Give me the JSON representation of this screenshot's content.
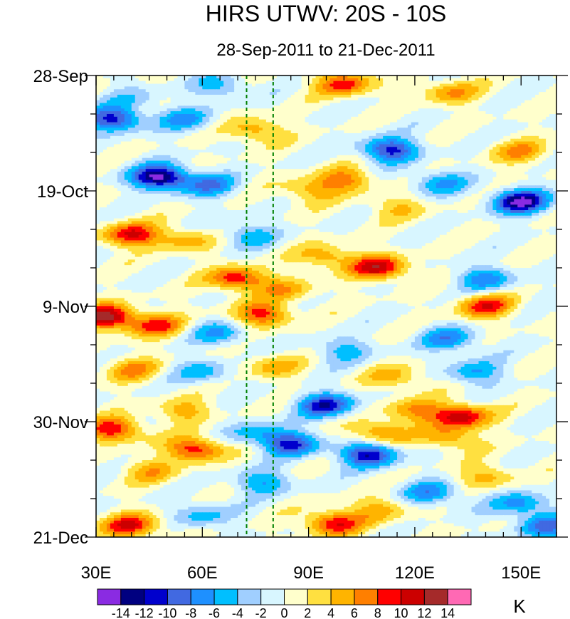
{
  "chart_data": {
    "type": "heatmap",
    "title": "HIRS UTWV: 20S - 10S",
    "subtitle": "28-Sep-2011 to 21-Dec-2011",
    "xlabel": "",
    "ylabel": "",
    "xlim": [
      30,
      160
    ],
    "ylim_dates": [
      "28-Sep-2011",
      "21-Dec-2011"
    ],
    "ylim_days": [
      0,
      84
    ],
    "x_ticks": [
      {
        "value": 30,
        "label": "30E"
      },
      {
        "value": 60,
        "label": "60E"
      },
      {
        "value": 90,
        "label": "90E"
      },
      {
        "value": 120,
        "label": "120E"
      },
      {
        "value": 150,
        "label": "150E"
      }
    ],
    "y_ticks": [
      {
        "day": 0,
        "label": "28-Sep"
      },
      {
        "day": 21,
        "label": "19-Oct"
      },
      {
        "day": 42,
        "label": "9-Nov"
      },
      {
        "day": 63,
        "label": "30-Nov"
      },
      {
        "day": 84,
        "label": "21-Dec"
      }
    ],
    "reference_lines": [
      {
        "lon": 72.5,
        "style": "dashed",
        "color": "#008000"
      },
      {
        "lon": 80,
        "style": "dashed",
        "color": "#008000"
      }
    ],
    "colorbar": {
      "unit": "K",
      "levels": [
        -14,
        -12,
        -10,
        -8,
        -6,
        -4,
        -2,
        0,
        2,
        4,
        6,
        8,
        10,
        12,
        14
      ],
      "labels": [
        "-14",
        "-12",
        "-10",
        "-8",
        "-6",
        "-4",
        "-2",
        "0",
        "2",
        "4",
        "6",
        "8",
        "10",
        "12",
        "14"
      ],
      "colors": [
        "#8a2be2",
        "#000080",
        "#0000cd",
        "#4169e1",
        "#1e90ff",
        "#00bfff",
        "#a0cfff",
        "#d8f6ff",
        "#ffffcc",
        "#ffe040",
        "#ffb400",
        "#ff7f00",
        "#ff0000",
        "#cc0000",
        "#a52a2a",
        "#ff69b4"
      ]
    },
    "anomaly_features": [
      {
        "lon": 100,
        "day": 1.5,
        "value": 9
      },
      {
        "lon": 130,
        "day": 3,
        "value": 6
      },
      {
        "lon": 65,
        "day": 2,
        "value": -5
      },
      {
        "lon": 40,
        "day": 4,
        "value": -3
      },
      {
        "lon": 35,
        "day": 8,
        "value": -11
      },
      {
        "lon": 55,
        "day": 8,
        "value": -6
      },
      {
        "lon": 75,
        "day": 10,
        "value": 6
      },
      {
        "lon": 113,
        "day": 13.5,
        "value": -11
      },
      {
        "lon": 150,
        "day": 14,
        "value": 6
      },
      {
        "lon": 48,
        "day": 18.5,
        "value": -15
      },
      {
        "lon": 62,
        "day": 20,
        "value": -7
      },
      {
        "lon": 100,
        "day": 19,
        "value": 7
      },
      {
        "lon": 90,
        "day": 21,
        "value": 5
      },
      {
        "lon": 150,
        "day": 23,
        "value": -14
      },
      {
        "lon": 127,
        "day": 19.5,
        "value": -6
      },
      {
        "lon": 115,
        "day": 24,
        "value": 4
      },
      {
        "lon": 40,
        "day": 29,
        "value": 10
      },
      {
        "lon": 55,
        "day": 30,
        "value": 5
      },
      {
        "lon": 73,
        "day": 29,
        "value": -5
      },
      {
        "lon": 110,
        "day": 35,
        "value": 11
      },
      {
        "lon": 95,
        "day": 33,
        "value": 6
      },
      {
        "lon": 70,
        "day": 37,
        "value": 10
      },
      {
        "lon": 84,
        "day": 39,
        "value": 5
      },
      {
        "lon": 140,
        "day": 37,
        "value": -7
      },
      {
        "lon": 33,
        "day": 44,
        "value": 13
      },
      {
        "lon": 47,
        "day": 45.5,
        "value": 8
      },
      {
        "lon": 77,
        "day": 43.5,
        "value": 9
      },
      {
        "lon": 65,
        "day": 47,
        "value": -6
      },
      {
        "lon": 140,
        "day": 42,
        "value": 9
      },
      {
        "lon": 130,
        "day": 48,
        "value": -7
      },
      {
        "lon": 100,
        "day": 50,
        "value": -5
      },
      {
        "lon": 40,
        "day": 53.5,
        "value": 6
      },
      {
        "lon": 60,
        "day": 54,
        "value": -5
      },
      {
        "lon": 80,
        "day": 53,
        "value": 5
      },
      {
        "lon": 137,
        "day": 54,
        "value": -6
      },
      {
        "lon": 115,
        "day": 55,
        "value": 5
      },
      {
        "lon": 95,
        "day": 60,
        "value": -11
      },
      {
        "lon": 120,
        "day": 61,
        "value": 6
      },
      {
        "lon": 133,
        "day": 62,
        "value": 11
      },
      {
        "lon": 55,
        "day": 61,
        "value": 5
      },
      {
        "lon": 35,
        "day": 64.5,
        "value": 10
      },
      {
        "lon": 58,
        "day": 68,
        "value": 10
      },
      {
        "lon": 85,
        "day": 67,
        "value": -10
      },
      {
        "lon": 107,
        "day": 69,
        "value": -12
      },
      {
        "lon": 130,
        "day": 66,
        "value": 6
      },
      {
        "lon": 110,
        "day": 65,
        "value": 7
      },
      {
        "lon": 75,
        "day": 65,
        "value": -5
      },
      {
        "lon": 45,
        "day": 72,
        "value": 5
      },
      {
        "lon": 77,
        "day": 74,
        "value": -6
      },
      {
        "lon": 140,
        "day": 73,
        "value": 5
      },
      {
        "lon": 125,
        "day": 76,
        "value": -7
      },
      {
        "lon": 150,
        "day": 78,
        "value": -7
      },
      {
        "lon": 97,
        "day": 81.5,
        "value": 10
      },
      {
        "lon": 40,
        "day": 82,
        "value": 10
      },
      {
        "lon": 60,
        "day": 80,
        "value": -5
      },
      {
        "lon": 110,
        "day": 79,
        "value": 5
      },
      {
        "lon": 157,
        "day": 82,
        "value": -8
      }
    ]
  }
}
